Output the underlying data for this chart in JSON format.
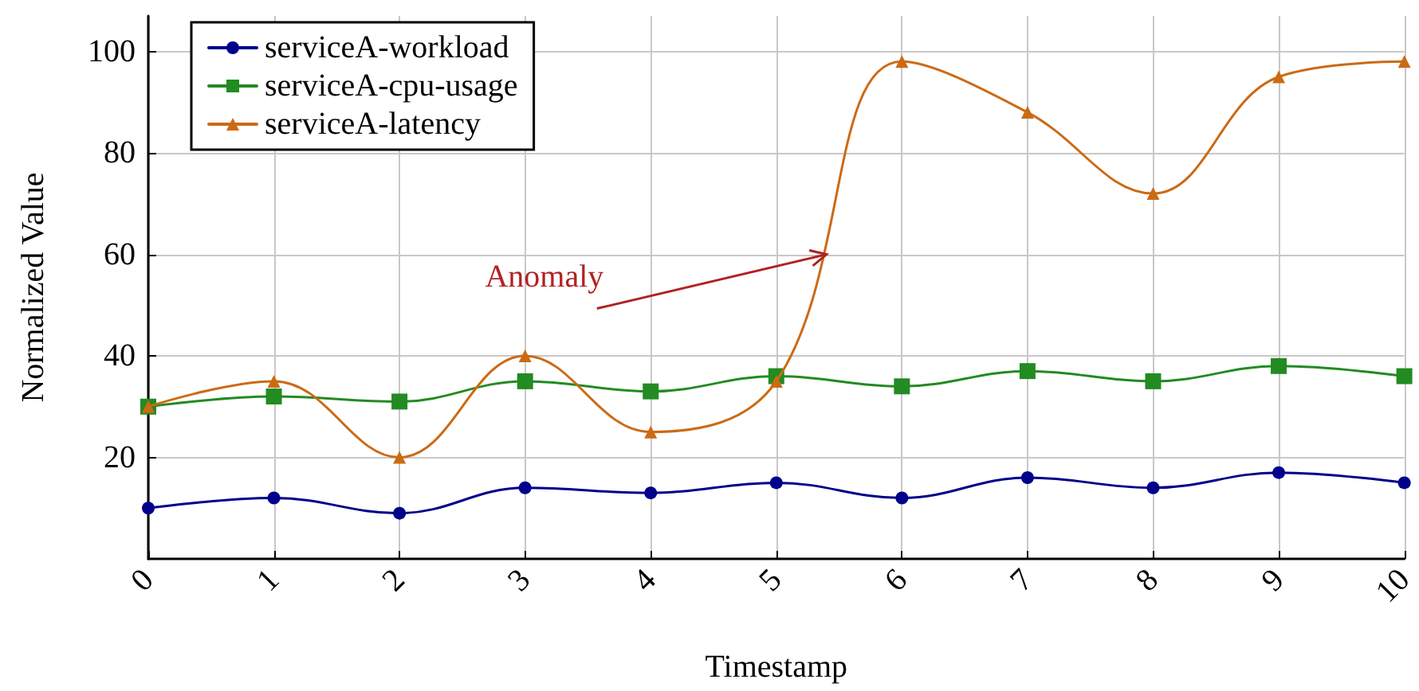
{
  "chart_data": {
    "type": "line",
    "xlabel": "Timestamp",
    "ylabel": "Normalized Value",
    "x": [
      0,
      1,
      2,
      3,
      4,
      5,
      6,
      7,
      8,
      9,
      10
    ],
    "series": [
      {
        "name": "serviceA-workload",
        "color": "#00008b",
        "marker": "circle",
        "values": [
          10,
          12,
          9,
          14,
          13,
          15,
          12,
          16,
          14,
          17,
          15
        ]
      },
      {
        "name": "serviceA-cpu-usage",
        "color": "#228b22",
        "marker": "square",
        "values": [
          30,
          32,
          31,
          35,
          33,
          36,
          34,
          37,
          35,
          38,
          36
        ]
      },
      {
        "name": "serviceA-latency",
        "color": "#cc6a14",
        "marker": "triangle",
        "values": [
          30,
          35,
          20,
          40,
          25,
          35,
          98,
          88,
          72,
          95,
          98
        ]
      }
    ],
    "annotations": [
      {
        "text": "Anomaly",
        "x": 5.4,
        "y": 60
      }
    ],
    "xlim": [
      0,
      10
    ],
    "xticks": [
      0,
      1,
      2,
      3,
      4,
      5,
      6,
      7,
      8,
      9,
      10
    ],
    "ylim": [
      0,
      107
    ],
    "yticks": [
      20,
      40,
      60,
      80,
      100
    ],
    "grid": true,
    "legend": "top left",
    "line_style": "solid"
  }
}
